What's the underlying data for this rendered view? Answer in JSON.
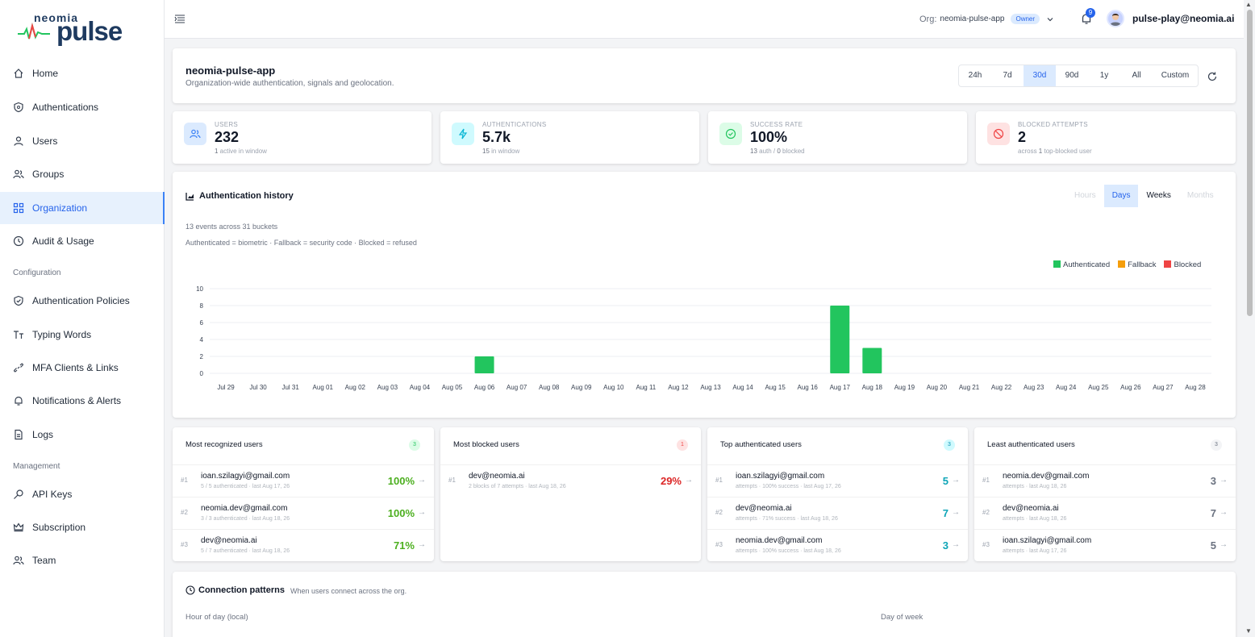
{
  "brand": {
    "top": "neomia",
    "main": "pulse"
  },
  "sidebar": {
    "items": [
      {
        "label": "Home",
        "icon": "home-icon"
      },
      {
        "label": "Authentications",
        "icon": "shield-icon"
      },
      {
        "label": "Users",
        "icon": "user-icon"
      },
      {
        "label": "Groups",
        "icon": "group-icon"
      },
      {
        "label": "Organization",
        "icon": "grid-icon",
        "active": true
      },
      {
        "label": "Audit & Usage",
        "icon": "clock-icon"
      }
    ],
    "section_config": "Configuration",
    "config_items": [
      {
        "label": "Authentication Policies",
        "icon": "shield-check-icon"
      },
      {
        "label": "Typing Words",
        "icon": "text-icon"
      },
      {
        "label": "MFA Clients & Links",
        "icon": "link-icon"
      },
      {
        "label": "Notifications & Alerts",
        "icon": "bell-icon"
      },
      {
        "label": "Logs",
        "icon": "file-icon"
      }
    ],
    "section_mgmt": "Management",
    "mgmt_items": [
      {
        "label": "API Keys",
        "icon": "key-icon"
      },
      {
        "label": "Subscription",
        "icon": "crown-icon"
      },
      {
        "label": "Team",
        "icon": "team-icon"
      }
    ]
  },
  "topbar": {
    "org_label": "Org:",
    "org_name": "neomia-pulse-app",
    "role": "Owner",
    "notif_count": "9",
    "user_email": "pulse-play@neomia.ai"
  },
  "header": {
    "title": "neomia-pulse-app",
    "subtitle": "Organization-wide authentication, signals and geolocation.",
    "ranges": [
      "24h",
      "7d",
      "30d",
      "90d",
      "1y",
      "All",
      "Custom"
    ],
    "selected_range": "30d"
  },
  "stats": [
    {
      "label": "USERS",
      "value": "232",
      "sub_strong": "1",
      "sub": " active in window",
      "color": "#3b82f6",
      "bg": "#dbeafe"
    },
    {
      "label": "AUTHENTICATIONS",
      "value": "5.7k",
      "sub_strong": "15",
      "sub": " in window",
      "color": "#06b6d4",
      "bg": "#cffafe"
    },
    {
      "label": "SUCCESS RATE",
      "value": "100%",
      "sub_strong": "13",
      "sub": " auth / ",
      "sub_strong2": "0",
      "sub2": " blocked",
      "color": "#22c55e",
      "bg": "#dcfce7"
    },
    {
      "label": "BLOCKED ATTEMPTS",
      "value": "2",
      "sub_pre": "across ",
      "sub_strong": "1",
      "sub": " top-blocked user",
      "color": "#ef4444",
      "bg": "#fee2e2"
    }
  ],
  "history": {
    "title": "Authentication history",
    "granularity": [
      "Hours",
      "Days",
      "Weeks",
      "Months"
    ],
    "selected": "Days",
    "meta1": "13 events across 31 buckets",
    "meta2": "Authenticated = biometric · Fallback = security code · Blocked = refused",
    "legend": [
      {
        "name": "Authenticated",
        "color": "#22c55e"
      },
      {
        "name": "Fallback",
        "color": "#f59e0b"
      },
      {
        "name": "Blocked",
        "color": "#ef4444"
      }
    ]
  },
  "chart_data": {
    "type": "bar",
    "categories": [
      "Jul 29",
      "Jul 30",
      "Jul 31",
      "Aug 01",
      "Aug 02",
      "Aug 03",
      "Aug 04",
      "Aug 05",
      "Aug 06",
      "Aug 07",
      "Aug 08",
      "Aug 09",
      "Aug 10",
      "Aug 11",
      "Aug 12",
      "Aug 13",
      "Aug 14",
      "Aug 15",
      "Aug 16",
      "Aug 17",
      "Aug 18",
      "Aug 19",
      "Aug 20",
      "Aug 21",
      "Aug 22",
      "Aug 23",
      "Aug 24",
      "Aug 25",
      "Aug 26",
      "Aug 27",
      "Aug 28"
    ],
    "series": [
      {
        "name": "Authenticated",
        "values": [
          0,
          0,
          0,
          0,
          0,
          0,
          0,
          0,
          2,
          0,
          0,
          0,
          0,
          0,
          0,
          0,
          0,
          0,
          0,
          8,
          3,
          0,
          0,
          0,
          0,
          0,
          0,
          0,
          0,
          0,
          0
        ]
      },
      {
        "name": "Fallback",
        "values": [
          0,
          0,
          0,
          0,
          0,
          0,
          0,
          0,
          0,
          0,
          0,
          0,
          0,
          0,
          0,
          0,
          0,
          0,
          0,
          0,
          0,
          0,
          0,
          0,
          0,
          0,
          0,
          0,
          0,
          0,
          0
        ]
      },
      {
        "name": "Blocked",
        "values": [
          0,
          0,
          0,
          0,
          0,
          0,
          0,
          0,
          0,
          0,
          0,
          0,
          0,
          0,
          0,
          0,
          0,
          0,
          0,
          0,
          0,
          0,
          0,
          0,
          0,
          0,
          0,
          0,
          0,
          0,
          0
        ]
      }
    ],
    "yticks": [
      0,
      2,
      4,
      6,
      8,
      10
    ],
    "ylim": [
      0,
      10
    ],
    "grid": true,
    "legend": "top-right"
  },
  "lists": [
    {
      "title": "Most recognized users",
      "count": "3",
      "count_color": "#22c55e",
      "count_bg": "#dcfce7",
      "value_color": "#4caf1f",
      "rows": [
        {
          "rank": "#1",
          "email": "ioan.szilagyi@gmail.com",
          "meta": "5 / 5 authenticated · last Aug 17, 26",
          "value": "100%"
        },
        {
          "rank": "#2",
          "email": "neomia.dev@gmail.com",
          "meta": "3 / 3 authenticated · last Aug 18, 26",
          "value": "100%"
        },
        {
          "rank": "#3",
          "email": "dev@neomia.ai",
          "meta": "5 / 7 authenticated · last Aug 18, 26",
          "value": "71%"
        }
      ]
    },
    {
      "title": "Most blocked users",
      "count": "1",
      "count_color": "#ef4444",
      "count_bg": "#fee2e2",
      "value_color": "#dc2626",
      "rows": [
        {
          "rank": "#1",
          "email": "dev@neomia.ai",
          "meta": "2 blocks of 7 attempts · last Aug 18, 26",
          "value": "29%"
        }
      ]
    },
    {
      "title": "Top authenticated users",
      "count": "3",
      "count_color": "#0891b2",
      "count_bg": "#cffafe",
      "value_color": "#0ea5b7",
      "rows": [
        {
          "rank": "#1",
          "email": "ioan.szilagyi@gmail.com",
          "meta": "attempts · 100% success · last Aug 17, 26",
          "value": "5"
        },
        {
          "rank": "#2",
          "email": "dev@neomia.ai",
          "meta": "attempts · 71% success · last Aug 18, 26",
          "value": "7"
        },
        {
          "rank": "#3",
          "email": "neomia.dev@gmail.com",
          "meta": "attempts · 100% success · last Aug 18, 26",
          "value": "3"
        }
      ]
    },
    {
      "title": "Least authenticated users",
      "count": "3",
      "count_color": "#6b7280",
      "count_bg": "#f3f4f6",
      "value_color": "#6b7280",
      "rows": [
        {
          "rank": "#1",
          "email": "neomia.dev@gmail.com",
          "meta": "attempts · last Aug 18, 26",
          "value": "3"
        },
        {
          "rank": "#2",
          "email": "dev@neomia.ai",
          "meta": "attempts · last Aug 18, 26",
          "value": "7"
        },
        {
          "rank": "#3",
          "email": "ioan.szilagyi@gmail.com",
          "meta": "attempts · last Aug 17, 26",
          "value": "5"
        }
      ]
    }
  ],
  "connection": {
    "title": "Connection patterns",
    "subtitle": "When users connect across the org.",
    "hour_label": "Hour of day (local)",
    "dow_label": "Day of week"
  }
}
